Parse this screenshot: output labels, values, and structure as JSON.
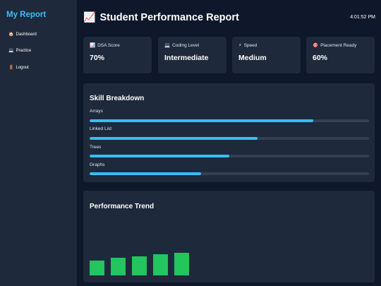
{
  "sidebar": {
    "brand": "My Report",
    "items": [
      {
        "icon": "🏠",
        "icon_name": "house-icon",
        "label": "Dashboard"
      },
      {
        "icon": "💻",
        "icon_name": "laptop-icon",
        "label": "Practice"
      },
      {
        "icon": "🚪",
        "icon_name": "door-icon",
        "label": "Logout"
      }
    ]
  },
  "header": {
    "icon": "📈",
    "icon_name": "chart-increasing-icon",
    "title": "Student Performance Report",
    "time": "4:01:52 PM"
  },
  "cards": [
    {
      "icon": "📊",
      "icon_name": "bar-chart-icon",
      "label": "DSA Score",
      "value": "70%"
    },
    {
      "icon": "💻",
      "icon_name": "laptop-icon",
      "label": "Coding Level",
      "value": "Intermediate"
    },
    {
      "icon": "⚡",
      "icon_name": "lightning-icon",
      "label": "Speed",
      "value": "Medium"
    },
    {
      "icon": "🎯",
      "icon_name": "target-icon",
      "label": "Placement Ready",
      "value": "60%"
    }
  ],
  "skills": {
    "title": "Skill Breakdown",
    "items": [
      {
        "label": "Arrays",
        "level": 0.8
      },
      {
        "label": "Linked List",
        "level": 0.6
      },
      {
        "label": "Trees",
        "level": 0.5
      },
      {
        "label": "Graphs",
        "level": 0.4
      }
    ]
  },
  "trend": {
    "title": "Performance Trend"
  },
  "chart_data": {
    "type": "bar",
    "title": "Performance Trend",
    "values": [
      21,
      25,
      27,
      30,
      32
    ],
    "ylim": [
      0,
      60
    ],
    "color": "#22c55e"
  },
  "colors": {
    "accent": "#38bdf8",
    "trend_bar": "#22c55e",
    "card_bg": "#1e293b",
    "page_bg": "#0f172a"
  }
}
